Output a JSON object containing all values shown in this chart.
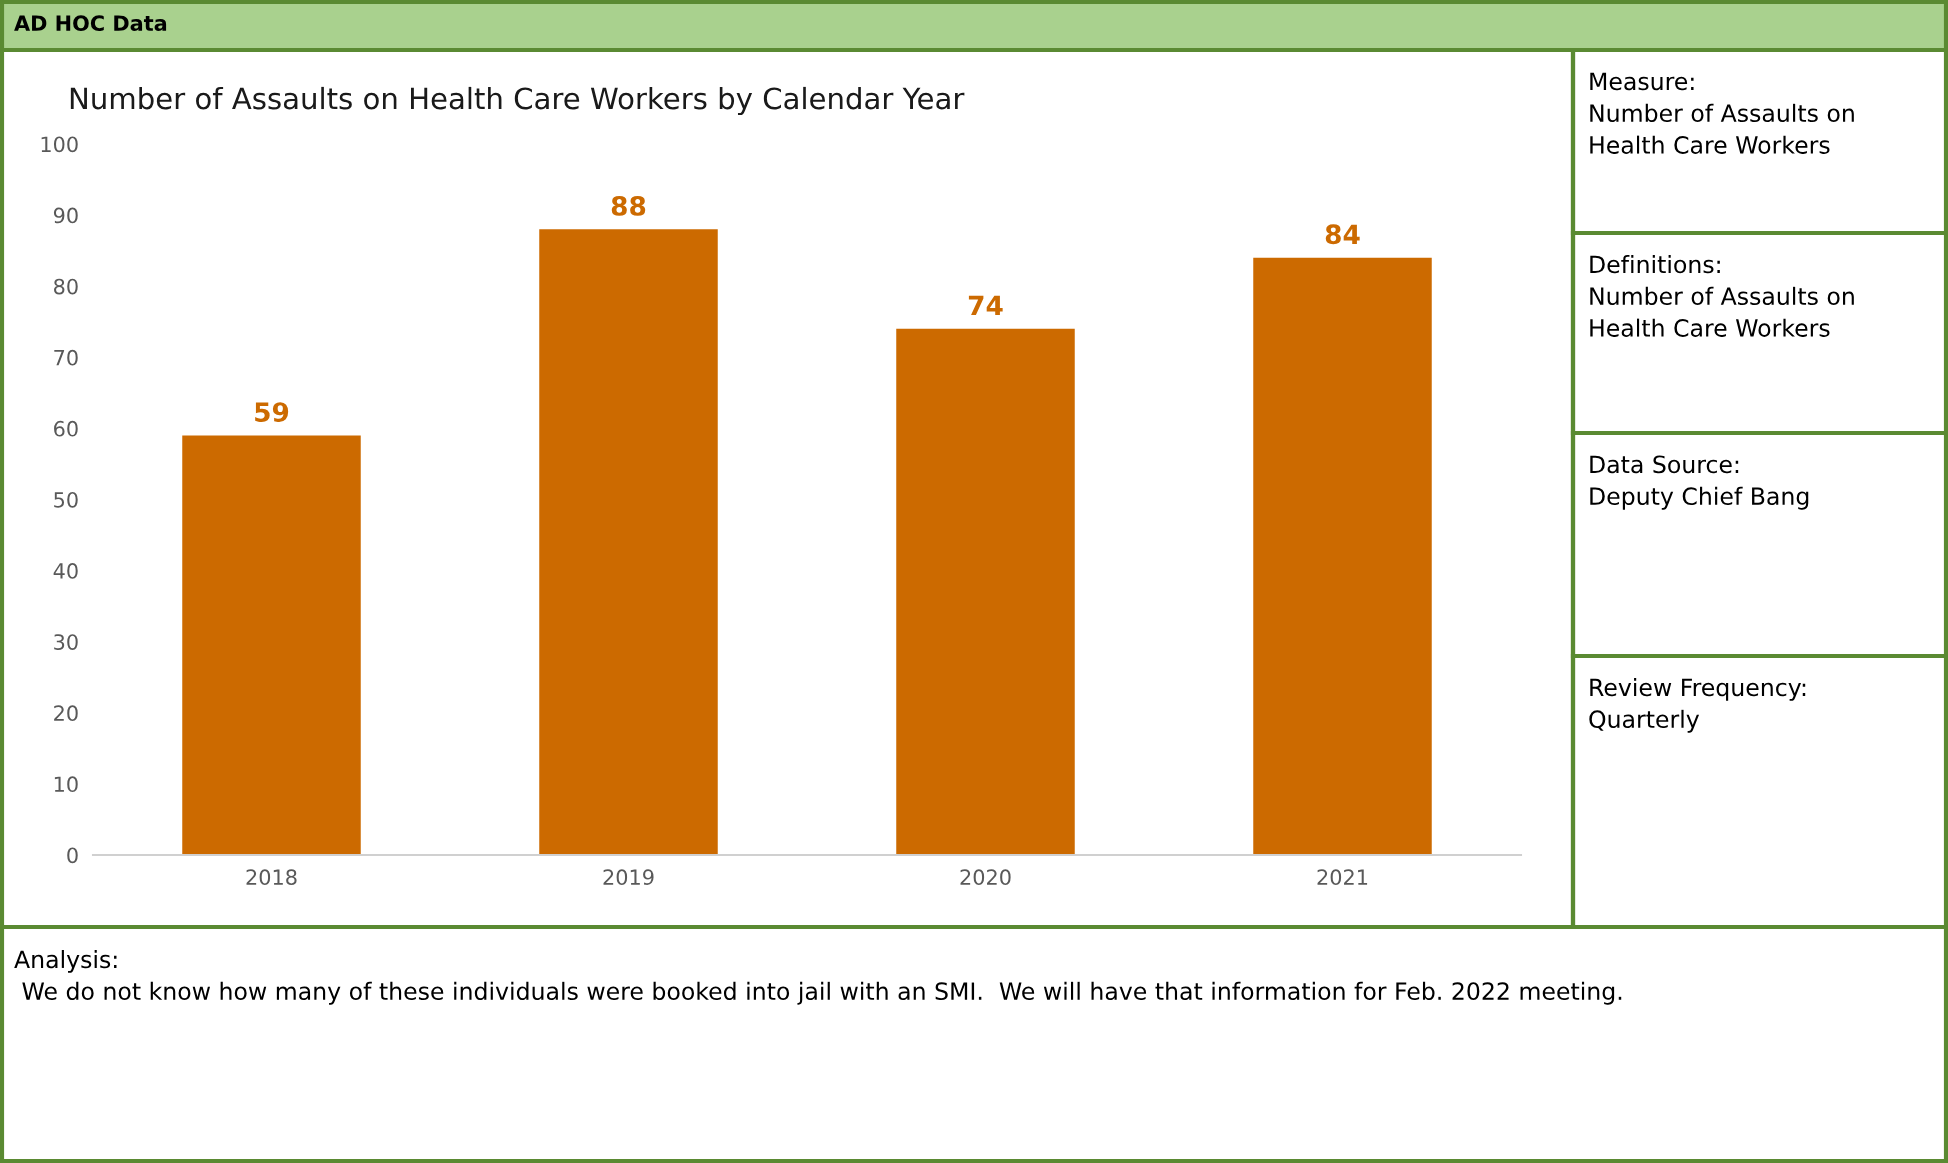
{
  "chart_data": {
    "type": "bar",
    "title": "Number of Assaults on Health Care Workers by Calendar Year",
    "categories": [
      "2018",
      "2019",
      "2020",
      "2021"
    ],
    "values": [
      59,
      88,
      74,
      84
    ],
    "color": "#cc6a00",
    "ylim": [
      0,
      100
    ],
    "yticks": [
      0,
      10,
      20,
      30,
      40,
      50,
      60,
      70,
      80,
      90,
      100
    ],
    "data_labels": true,
    "grid": false,
    "legend": false,
    "annotations": [
      "AD HOC Data",
      "Measure:\nNumber of Assaults on\nHealth Care Workers",
      "Definitions:\nNumber of Assaults on\nHealth Care Workers",
      "Data Source:\nDeputy Chief Bang",
      "Review Frequency:\nQuarterly",
      "Analysis:\n We do not know how many of these individuals were booked into jail with an SMI.  We will have that information for Feb. 2022 meeting."
    ]
  }
}
